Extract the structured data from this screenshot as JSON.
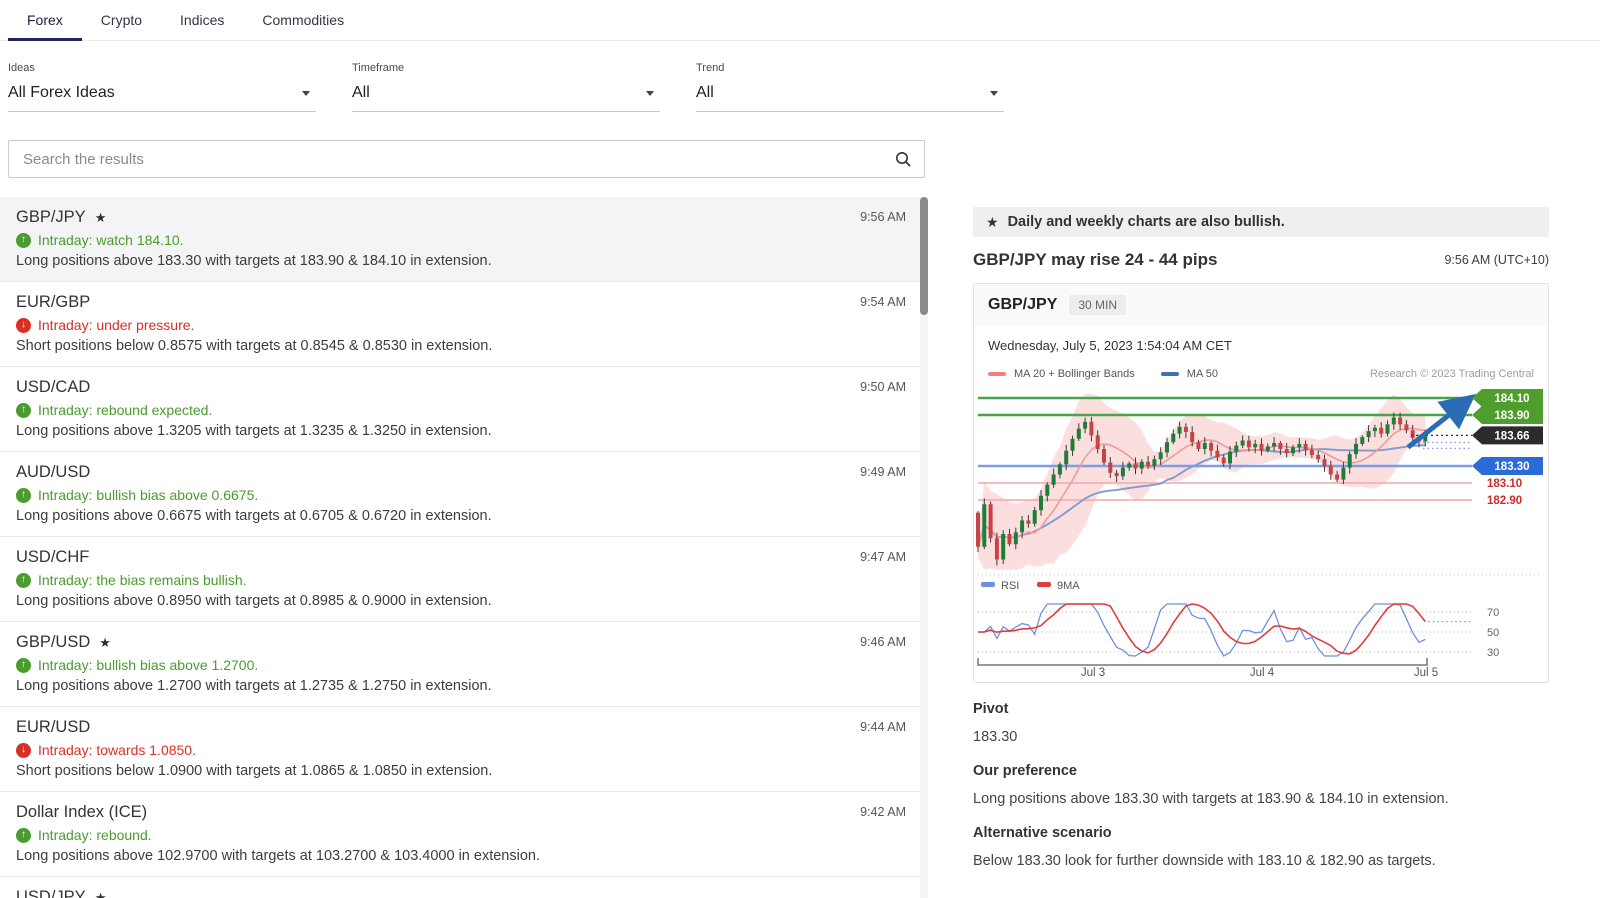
{
  "tabs": [
    {
      "label": "Forex",
      "active": true
    },
    {
      "label": "Crypto",
      "active": false
    },
    {
      "label": "Indices",
      "active": false
    },
    {
      "label": "Commodities",
      "active": false
    }
  ],
  "filters": [
    {
      "label": "Ideas",
      "value": "All Forex Ideas"
    },
    {
      "label": "Timeframe",
      "value": "All"
    },
    {
      "label": "Trend",
      "value": "All"
    }
  ],
  "search": {
    "placeholder": "Search the results"
  },
  "ideas": [
    {
      "pair": "GBP/JPY",
      "starred": true,
      "time": "9:56 AM",
      "dir": "up",
      "signal": "Intraday: watch 184.10.",
      "desc": "Long positions above 183.30 with targets at 183.90 & 184.10 in extension.",
      "selected": true
    },
    {
      "pair": "EUR/GBP",
      "starred": false,
      "time": "9:54 AM",
      "dir": "down",
      "signal": "Intraday: under pressure.",
      "desc": "Short positions below 0.8575 with targets at 0.8545 & 0.8530 in extension."
    },
    {
      "pair": "USD/CAD",
      "starred": false,
      "time": "9:50 AM",
      "dir": "up",
      "signal": "Intraday: rebound expected.",
      "desc": "Long positions above 1.3205 with targets at 1.3235 & 1.3250 in extension."
    },
    {
      "pair": "AUD/USD",
      "starred": false,
      "time": "9:49 AM",
      "dir": "up",
      "signal": "Intraday: bullish bias above 0.6675.",
      "desc": "Long positions above 0.6675 with targets at 0.6705 & 0.6720 in extension."
    },
    {
      "pair": "USD/CHF",
      "starred": false,
      "time": "9:47 AM",
      "dir": "up",
      "signal": "Intraday: the bias remains bullish.",
      "desc": "Long positions above 0.8950 with targets at 0.8985 & 0.9000 in extension."
    },
    {
      "pair": "GBP/USD",
      "starred": true,
      "time": "9:46 AM",
      "dir": "up",
      "signal": "Intraday: bullish bias above 1.2700.",
      "desc": "Long positions above 1.2700 with targets at 1.2735 & 1.2750 in extension."
    },
    {
      "pair": "EUR/USD",
      "starred": false,
      "time": "9:44 AM",
      "dir": "down",
      "signal": "Intraday: towards 1.0850.",
      "desc": "Short positions below 1.0900 with targets at 1.0865 & 1.0850 in extension."
    },
    {
      "pair": "Dollar Index (ICE)",
      "starred": false,
      "time": "9:42 AM",
      "dir": "up",
      "signal": "Intraday: rebound.",
      "desc": "Long positions above 102.9700 with targets at 103.2700 & 103.4000 in extension."
    },
    {
      "pair": "USD/JPY",
      "starred": true,
      "partial": true
    }
  ],
  "detail": {
    "banner": "Daily and weekly charts are also bullish.",
    "headline": "GBP/JPY may rise 24 - 44 pips",
    "headline_time": "9:56 AM (UTC+10)",
    "chart_header": {
      "symbol": "GBP/JPY",
      "timeframe": "30 MIN",
      "datetime": "Wednesday, July 5, 2023 1:54:04 AM CET",
      "research": "Research © 2023 Trading Central"
    },
    "sections": [
      {
        "heading": "Pivot",
        "body": "183.30"
      },
      {
        "heading": "Our preference",
        "body": "Long positions above 183.30 with targets at 183.90 & 184.10 in extension."
      },
      {
        "heading": "Alternative scenario",
        "body": "Below 183.30 look for further downside with 183.10 & 182.90 as targets."
      }
    ]
  },
  "chart_data": {
    "type": "candlestick-with-rsi",
    "symbol": "GBP/JPY",
    "interval": "30 MIN",
    "legend_main": [
      {
        "label": "MA 20 + Bollinger Bands",
        "color": "#f08080"
      },
      {
        "label": "MA 50",
        "color": "#3f6fb5"
      }
    ],
    "legend_rsi": [
      {
        "label": "RSI",
        "color": "#6f8fe0"
      },
      {
        "label": "9MA",
        "color": "#e03c3c"
      }
    ],
    "price_labels": [
      {
        "value": "184.10",
        "level": 184.1,
        "style": "green"
      },
      {
        "value": "183.90",
        "level": 183.9,
        "style": "green"
      },
      {
        "value": "183.66",
        "level": 183.66,
        "style": "dark"
      },
      {
        "value": "183.30",
        "level": 183.3,
        "style": "blue"
      },
      {
        "value": "183.10",
        "level": 183.1,
        "style": "red-text"
      },
      {
        "value": "182.90",
        "level": 182.9,
        "style": "red-text"
      }
    ],
    "levels": {
      "resistance2": 184.1,
      "resistance1": 183.9,
      "last": 183.66,
      "pivot": 183.3,
      "support1": 183.1,
      "support2": 182.9
    },
    "rsi_ticks": [
      "70",
      "50",
      "30"
    ],
    "x_labels": [
      "Jul 3",
      "Jul 4",
      "Jul 5"
    ],
    "first_open": 182.75,
    "closes": [
      182.35,
      182.85,
      182.45,
      182.2,
      182.5,
      182.38,
      182.52,
      182.66,
      182.62,
      182.78,
      182.95,
      183.08,
      183.2,
      183.32,
      183.48,
      183.62,
      183.74,
      183.82,
      183.66,
      183.5,
      183.34,
      183.22,
      183.18,
      183.28,
      183.33,
      183.27,
      183.35,
      183.3,
      183.38,
      183.46,
      183.58,
      183.68,
      183.76,
      183.7,
      183.58,
      183.5,
      183.57,
      183.48,
      183.4,
      183.33,
      183.47,
      183.54,
      183.6,
      183.52,
      183.56,
      183.48,
      183.53,
      183.57,
      183.5,
      183.45,
      183.52,
      183.56,
      183.49,
      183.43,
      183.38,
      183.3,
      183.2,
      183.14,
      183.28,
      183.44,
      183.56,
      183.64,
      183.71,
      183.75,
      183.68,
      183.79,
      183.87,
      183.79,
      183.72,
      183.63,
      183.59,
      183.66
    ]
  },
  "colors": {
    "accent": "#23235f",
    "green": "#4a9c2e",
    "red": "#d93025",
    "pill_green": "#4d9e2d",
    "pill_blue": "#2b6bd8",
    "pill_dark": "#2b2b2b",
    "level_green_line": "#47a447",
    "level_blue_line": "#7d9de8",
    "level_red_line": "#f2a8a8",
    "red_label_text": "#cc2b2b",
    "candle_up": "#1e7d36",
    "candle_down": "#c84444",
    "band_fill": "rgba(244,154,154,0.32)",
    "ma20": "#ef9a9a",
    "ma50": "#7f9cd0",
    "arrow": "#2b6bb5"
  }
}
